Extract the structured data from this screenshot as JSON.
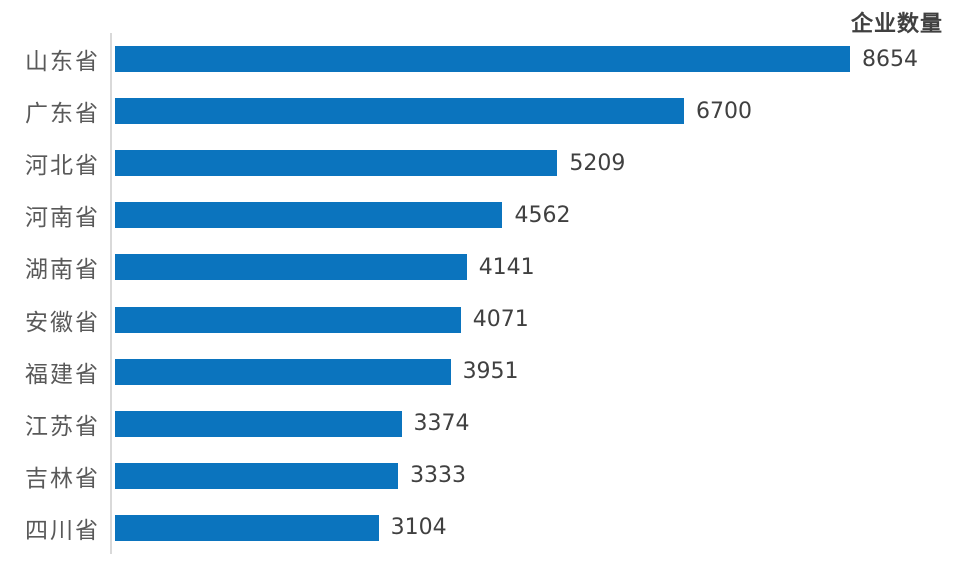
{
  "chart_data": {
    "type": "bar",
    "orientation": "horizontal",
    "title": "企业数量",
    "categories": [
      "山东省",
      "广东省",
      "河北省",
      "河南省",
      "湖南省",
      "安徽省",
      "福建省",
      "江苏省",
      "吉林省",
      "四川省"
    ],
    "values": [
      8654,
      6700,
      5209,
      4562,
      4141,
      4071,
      3951,
      3374,
      3333,
      3104
    ],
    "xlabel": "",
    "ylabel": "",
    "xlim": [
      0,
      8654
    ],
    "grid": false,
    "legend": false,
    "value_labels_shown": true,
    "colors": {
      "bar": "#0b74be",
      "axis_line": "#d9d9d9",
      "value_text": "#404040",
      "category_text": "#595959",
      "title_text": "#404040",
      "background": "#ffffff"
    }
  }
}
